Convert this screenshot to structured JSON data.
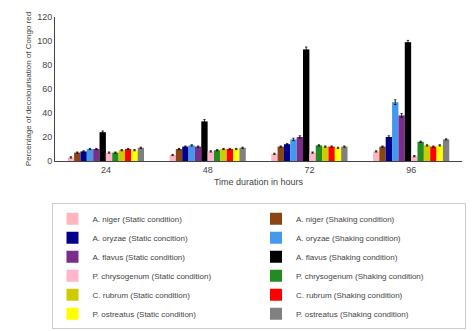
{
  "chart_data": {
    "type": "bar",
    "xlabel": "Time duration in hours",
    "ylabel": "Percentage of decolourisation of Congo red",
    "categories": [
      "24",
      "48",
      "72",
      "96"
    ],
    "series": [
      {
        "name": "A. niger (Static condition)",
        "color": "#FFB6C1",
        "values": [
          3,
          5,
          6,
          8
        ],
        "errors": [
          0.5,
          0.5,
          0.5,
          0.5
        ]
      },
      {
        "name": "A. niger (Shaking condition)",
        "color": "#8B4513",
        "values": [
          7,
          10,
          12,
          12
        ],
        "errors": [
          0.5,
          0.5,
          0.5,
          0.5
        ]
      },
      {
        "name": "A. oryzae (Static concition)",
        "color": "#00008B",
        "values": [
          8,
          12,
          14,
          20
        ],
        "errors": [
          0.5,
          0.5,
          0.5,
          1.0
        ]
      },
      {
        "name": "A. oryzae (Shaking condition)",
        "color": "#4499EE",
        "values": [
          10,
          13,
          18,
          49
        ],
        "errors": [
          0.5,
          0.5,
          1.0,
          2.0
        ]
      },
      {
        "name": "A. flavus (Static condition)",
        "color": "#7B2D8B",
        "values": [
          10,
          12,
          20,
          38
        ],
        "errors": [
          0.5,
          0.5,
          1.0,
          1.5
        ]
      },
      {
        "name": "A. flavus (Shaking condition)",
        "color": "#000000",
        "values": [
          24,
          33,
          93,
          99
        ],
        "errors": [
          1.0,
          1.5,
          2.0,
          1.5
        ]
      },
      {
        "name": "P. chrysogenum (Static condition)",
        "color": "#FFB6CB",
        "values": [
          7,
          8,
          7,
          4
        ],
        "errors": [
          0.5,
          0.5,
          0.5,
          0.5
        ]
      },
      {
        "name": "P. chrysogenum (Shaking condition)",
        "color": "#228B22",
        "values": [
          7,
          9,
          13,
          16
        ],
        "errors": [
          0.5,
          0.5,
          0.5,
          0.5
        ]
      },
      {
        "name": "C. rubrum (Static condition)",
        "color": "#CCCC00",
        "values": [
          9,
          10,
          12,
          13
        ],
        "errors": [
          0.5,
          0.5,
          0.5,
          0.5
        ]
      },
      {
        "name": "C. rubrum (Shaking condition)",
        "color": "#FF0000",
        "values": [
          10,
          10,
          12,
          12
        ],
        "errors": [
          0.5,
          0.5,
          0.5,
          0.5
        ]
      },
      {
        "name": "P. ostreatus (Static condition)",
        "color": "#FFFF00",
        "values": [
          9,
          10,
          11,
          13
        ],
        "errors": [
          0.5,
          0.5,
          0.5,
          0.5
        ]
      },
      {
        "name": "P. ostreatus (Shaking condition)",
        "color": "#808080",
        "values": [
          11,
          11,
          12,
          18
        ],
        "errors": [
          0.5,
          0.5,
          0.5,
          0.5
        ]
      }
    ],
    "ylim": [
      0,
      120
    ],
    "yticks": [
      0,
      20,
      40,
      60,
      80,
      100,
      120
    ],
    "grid": false,
    "legend": "bottom"
  }
}
